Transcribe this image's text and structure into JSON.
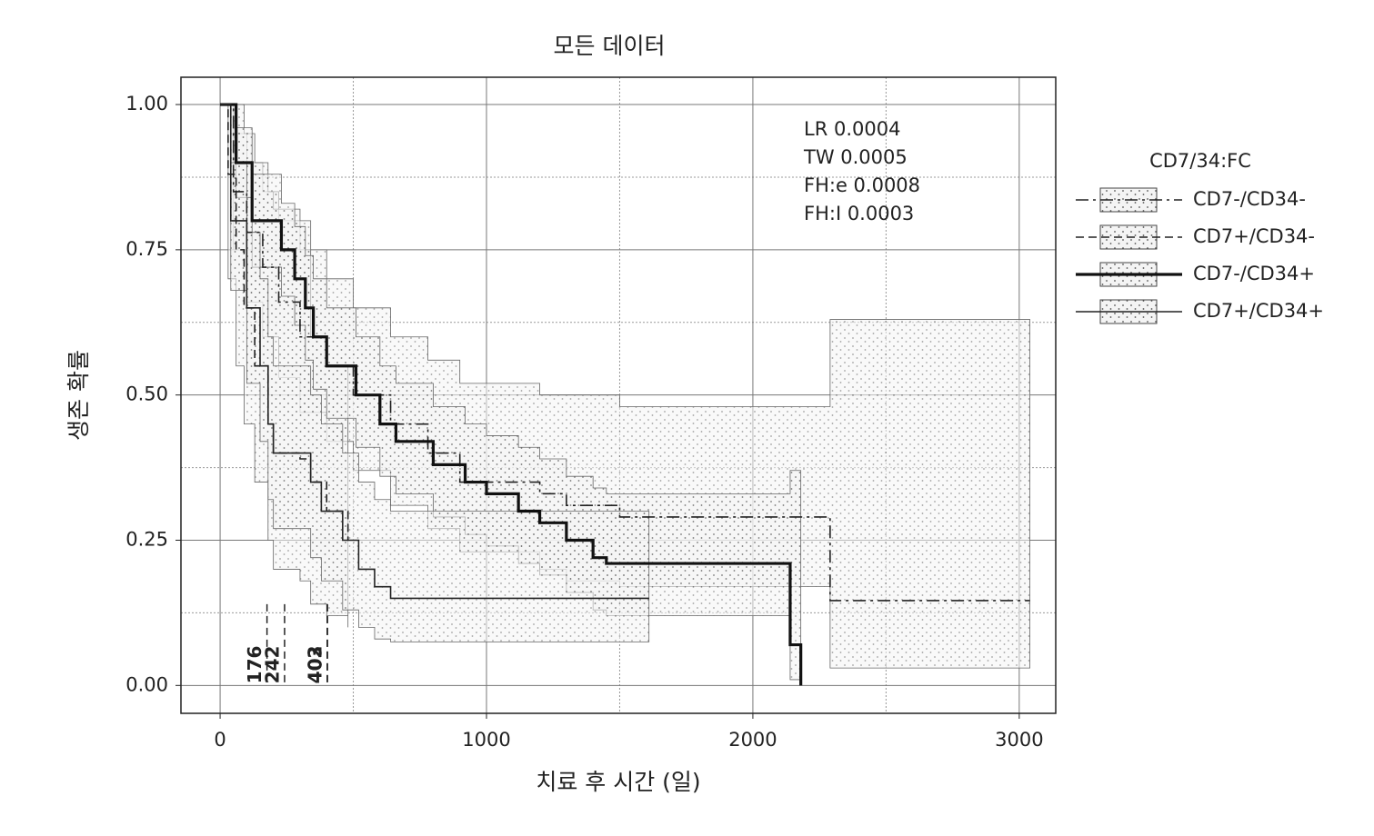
{
  "chart_data": {
    "type": "survival",
    "title": "모든 데이터",
    "x_label": "치료 후 시간 (일)",
    "y_label": "생존 확률",
    "xlim": [
      -147,
      3137
    ],
    "ylim": [
      -0.048,
      1.047
    ],
    "xticks": [
      0,
      1000,
      2000,
      3000
    ],
    "xminor": [
      500,
      1500,
      2500
    ],
    "yticks": [
      {
        "value": 0,
        "label": "0.00"
      },
      {
        "value": 0.25,
        "label": "0.25"
      },
      {
        "value": 0.5,
        "label": "0.50"
      },
      {
        "value": 0.75,
        "label": "0.75"
      },
      {
        "value": 1,
        "label": "1.00"
      }
    ],
    "yminor": [
      0.125,
      0.375,
      0.625,
      0.875
    ],
    "grid": true,
    "annotations": [
      "LR 0.0004",
      "TW 0.0005",
      "FH:e 0.0008",
      "FH:I 0.0003"
    ],
    "medians": [
      176,
      242,
      402,
      403
    ],
    "legend_title": "CD7/34:FC",
    "legend_position": "right",
    "series": [
      {
        "name": "CD7-/CD34-",
        "color": "#222222",
        "dash": "14,5,3,5",
        "width": 1.6,
        "x": [
          0,
          50,
          100,
          160,
          220,
          300,
          400,
          500,
          640,
          780,
          900,
          1200,
          1300,
          1500,
          2290,
          3040
        ],
        "values": [
          1,
          0.85,
          0.78,
          0.72,
          0.66,
          0.6,
          0.55,
          0.5,
          0.45,
          0.4,
          0.35,
          0.33,
          0.31,
          0.29,
          0.146,
          0.146
        ],
        "upper": [
          1,
          0.95,
          0.9,
          0.85,
          0.8,
          0.75,
          0.7,
          0.65,
          0.6,
          0.56,
          0.52,
          0.5,
          0.5,
          0.48,
          0.63,
          0.63
        ],
        "lower": [
          1,
          0.75,
          0.66,
          0.6,
          0.53,
          0.47,
          0.42,
          0.37,
          0.31,
          0.27,
          0.23,
          0.2,
          0.18,
          0.17,
          0.03,
          0.03
        ]
      },
      {
        "name": "CD7+/CD34-",
        "color": "#222222",
        "dash": "9,5",
        "width": 1.6,
        "x": [
          0,
          30,
          60,
          90,
          130,
          180,
          200,
          300,
          340,
          400,
          480
        ],
        "values": [
          1,
          0.88,
          0.75,
          0.65,
          0.55,
          0.45,
          0.4,
          0.39,
          0.35,
          0.3,
          0.25
        ],
        "upper": [
          1,
          1,
          1,
          0.95,
          0.9,
          0.85,
          0.82,
          0.8,
          0.6,
          0.55,
          0.5
        ],
        "lower": [
          1,
          0.7,
          0.55,
          0.45,
          0.35,
          0.25,
          0.2,
          0.18,
          0.14,
          0.12,
          0.1
        ]
      },
      {
        "name": "CD7-/CD34+",
        "color": "#111111",
        "dash": "none",
        "width": 3.2,
        "x": [
          0,
          60,
          120,
          230,
          280,
          320,
          350,
          400,
          510,
          600,
          660,
          800,
          920,
          1000,
          1120,
          1200,
          1300,
          1400,
          1450,
          2140,
          2180
        ],
        "values": [
          1,
          0.9,
          0.8,
          0.75,
          0.7,
          0.65,
          0.6,
          0.55,
          0.5,
          0.45,
          0.42,
          0.38,
          0.35,
          0.33,
          0.3,
          0.28,
          0.25,
          0.22,
          0.21,
          0.07,
          0
        ],
        "upper": [
          1,
          0.96,
          0.88,
          0.83,
          0.79,
          0.74,
          0.7,
          0.65,
          0.6,
          0.55,
          0.52,
          0.48,
          0.45,
          0.43,
          0.41,
          0.39,
          0.36,
          0.34,
          0.33,
          0.37,
          0.2
        ],
        "lower": [
          1,
          0.84,
          0.72,
          0.67,
          0.62,
          0.56,
          0.51,
          0.46,
          0.41,
          0.36,
          0.33,
          0.29,
          0.26,
          0.24,
          0.21,
          0.19,
          0.16,
          0.13,
          0.12,
          0.01,
          0
        ]
      },
      {
        "name": "CD7+/CD34+",
        "color": "#222222",
        "dash": "none",
        "width": 1.6,
        "x": [
          0,
          40,
          100,
          150,
          180,
          200,
          340,
          380,
          460,
          520,
          580,
          640,
          1610
        ],
        "values": [
          1,
          0.8,
          0.65,
          0.55,
          0.45,
          0.4,
          0.35,
          0.3,
          0.25,
          0.2,
          0.17,
          0.15,
          0.15
        ],
        "upper": [
          1,
          0.9,
          0.78,
          0.7,
          0.6,
          0.55,
          0.5,
          0.45,
          0.4,
          0.35,
          0.32,
          0.3,
          0.3
        ],
        "lower": [
          1,
          0.68,
          0.52,
          0.42,
          0.32,
          0.27,
          0.22,
          0.18,
          0.13,
          0.1,
          0.08,
          0.075,
          0.075
        ]
      }
    ]
  }
}
